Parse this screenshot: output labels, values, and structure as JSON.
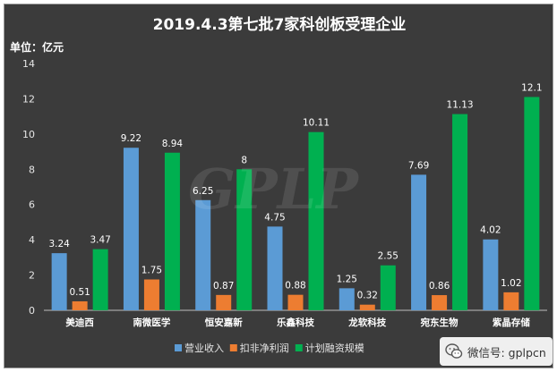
{
  "chart_data": {
    "type": "bar",
    "title": "2019.4.3第七批7家科创板受理企业",
    "unit_label": "单位：亿元",
    "categories": [
      "美迪西",
      "南微医学",
      "恒安嘉新",
      "乐鑫科技",
      "龙软科技",
      "宛东生物",
      "紫晶存储"
    ],
    "series": [
      {
        "name": "营业收入",
        "color": "#5b9bd5",
        "values": [
          3.24,
          9.22,
          6.25,
          4.75,
          1.25,
          7.69,
          4.02
        ]
      },
      {
        "name": "扣非净利润",
        "color": "#ed7d31",
        "values": [
          0.51,
          1.75,
          0.87,
          0.88,
          0.32,
          0.86,
          1.02
        ]
      },
      {
        "name": "计划融资规模",
        "color": "#00b050",
        "values": [
          3.47,
          8.94,
          8,
          10.11,
          2.55,
          11.13,
          12.1
        ]
      }
    ],
    "ylim": [
      0,
      14
    ],
    "yticks": [
      0,
      2,
      4,
      6,
      8,
      10,
      12,
      14
    ],
    "grid": false,
    "legend_position": "bottom"
  },
  "watermark": "GPLP",
  "badge": {
    "icon": "wechat-icon",
    "text": "微信号: gplpcn"
  }
}
